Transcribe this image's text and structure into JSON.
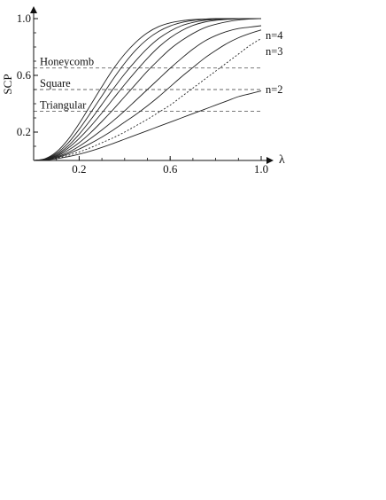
{
  "chart_data": {
    "type": "line",
    "title": "",
    "xlabel": "λ",
    "ylabel": "SCP",
    "xlim": [
      0,
      1.0
    ],
    "ylim": [
      0,
      1.0
    ],
    "xticks": [
      0.2,
      0.6,
      1.0
    ],
    "yticks": [
      0.2,
      0.6,
      1.0
    ],
    "xtick_labels": [
      "0.2",
      "0.6",
      "1.0"
    ],
    "ytick_labels": [
      "0.2",
      "0.6",
      "1.0"
    ],
    "grid": false,
    "x": [
      0,
      0.05,
      0.1,
      0.15,
      0.2,
      0.25,
      0.3,
      0.35,
      0.4,
      0.45,
      0.5,
      0.55,
      0.6,
      0.65,
      0.7,
      0.75,
      0.8,
      0.85,
      0.9,
      0.95,
      1.0
    ],
    "series": [
      {
        "name": "n=2",
        "style": "solid",
        "values": [
          0,
          0.003,
          0.012,
          0.026,
          0.044,
          0.066,
          0.092,
          0.12,
          0.15,
          0.18,
          0.21,
          0.24,
          0.27,
          0.3,
          0.33,
          0.36,
          0.39,
          0.42,
          0.45,
          0.47,
          0.49
        ]
      },
      {
        "name": "n=3",
        "style": "dotted",
        "values": [
          0,
          0.004,
          0.016,
          0.035,
          0.06,
          0.09,
          0.125,
          0.16,
          0.2,
          0.245,
          0.29,
          0.34,
          0.39,
          0.45,
          0.51,
          0.57,
          0.63,
          0.69,
          0.75,
          0.81,
          0.86
        ]
      },
      {
        "name": "",
        "style": "solid",
        "values": [
          0,
          0.005,
          0.02,
          0.045,
          0.08,
          0.12,
          0.165,
          0.215,
          0.27,
          0.325,
          0.385,
          0.45,
          0.52,
          0.59,
          0.655,
          0.72,
          0.775,
          0.825,
          0.865,
          0.895,
          0.92
        ]
      },
      {
        "name": "n=4",
        "style": "solid",
        "values": [
          0,
          0.006,
          0.025,
          0.055,
          0.1,
          0.155,
          0.215,
          0.28,
          0.35,
          0.425,
          0.5,
          0.575,
          0.65,
          0.72,
          0.785,
          0.84,
          0.88,
          0.91,
          0.93,
          0.94,
          0.95
        ]
      },
      {
        "name": "",
        "style": "solid",
        "values": [
          0,
          0.007,
          0.03,
          0.07,
          0.125,
          0.195,
          0.275,
          0.36,
          0.45,
          0.54,
          0.63,
          0.71,
          0.785,
          0.845,
          0.895,
          0.935,
          0.96,
          0.978,
          0.99,
          0.997,
          1.0
        ]
      },
      {
        "name": "",
        "style": "solid",
        "values": [
          0,
          0.008,
          0.035,
          0.085,
          0.155,
          0.24,
          0.335,
          0.435,
          0.535,
          0.63,
          0.72,
          0.8,
          0.865,
          0.915,
          0.952,
          0.975,
          0.988,
          0.995,
          0.998,
          1.0,
          1.0
        ]
      },
      {
        "name": "",
        "style": "solid",
        "values": [
          0,
          0.009,
          0.042,
          0.1,
          0.185,
          0.285,
          0.395,
          0.505,
          0.61,
          0.705,
          0.79,
          0.86,
          0.912,
          0.95,
          0.973,
          0.987,
          0.994,
          0.998,
          1.0,
          1.0,
          1.0
        ]
      },
      {
        "name": "",
        "style": "solid",
        "values": [
          0,
          0.01,
          0.05,
          0.12,
          0.22,
          0.335,
          0.455,
          0.575,
          0.685,
          0.78,
          0.855,
          0.91,
          0.948,
          0.972,
          0.986,
          0.994,
          0.998,
          1.0,
          1.0,
          1.0,
          1.0
        ]
      },
      {
        "name": "",
        "style": "solid",
        "values": [
          0,
          0.012,
          0.06,
          0.145,
          0.26,
          0.39,
          0.52,
          0.645,
          0.75,
          0.835,
          0.9,
          0.944,
          0.97,
          0.985,
          0.993,
          0.997,
          1.0,
          1.0,
          1.0,
          1.0,
          1.0
        ]
      }
    ],
    "thresholds": [
      {
        "label": "Honeycomb",
        "value": 0.652
      },
      {
        "label": "Square",
        "value": 0.5
      },
      {
        "label": "Triangular",
        "value": 0.347
      }
    ],
    "right_labels": [
      {
        "text": "n=4",
        "at_y": 0.88
      },
      {
        "text": "n=3",
        "at_y": 0.77
      },
      {
        "text": "n=2",
        "at_y": 0.5
      }
    ]
  }
}
